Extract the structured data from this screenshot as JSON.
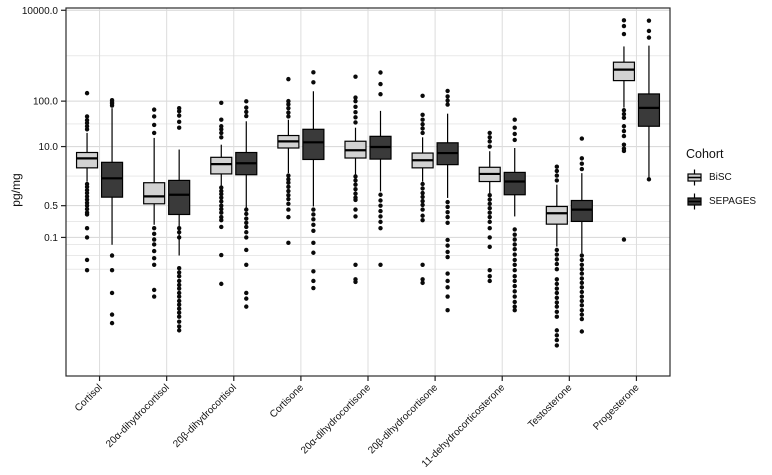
{
  "figure": {
    "background": "#ffffff"
  },
  "colors": {
    "bisc_fill": "#d2d2d2",
    "sepages_fill": "#3a3a3a",
    "box_stroke": "#000000",
    "outlier": "#0a0a0a",
    "grid_major": "#d6d6d6",
    "grid_minor": "#e9e9e9",
    "grid_vertical": "#dcdcdc",
    "panel_border": "#2b2b2b",
    "text": "#111111"
  },
  "y_axis": {
    "title": "pg/mg",
    "ticks": [
      {
        "label": "10000.0",
        "value": 10000
      },
      {
        "label": "100.0",
        "value": 100
      },
      {
        "label": "10.0",
        "value": 10
      },
      {
        "label": "0.5",
        "value": 0.5
      },
      {
        "label": "0.1",
        "value": 0.1
      }
    ],
    "minor_gridline_values": [
      1000,
      31.6,
      2.24,
      0.224,
      0.07,
      0.04,
      0.02
    ],
    "log10_range": [
      -4.05,
      4.05
    ]
  },
  "x_axis": {
    "categories": [
      "Cortisol",
      "20α-dihydrocortisol",
      "20β-dihydrocortisol",
      "Cortisone",
      "20α-dihydrocortisone",
      "20β-dihydrocortisone",
      "11-dehydrocorticosterone",
      "Testosterone",
      "Progesterone"
    ],
    "label_rotation_deg": 45
  },
  "legend": {
    "title": "Cohort",
    "items": [
      {
        "label": "BiSC",
        "fill": "#d2d2d2"
      },
      {
        "label": "SEPAGES",
        "fill": "#3a3a3a"
      }
    ]
  },
  "chart_data": {
    "type": "boxplot",
    "scale": "log10",
    "ylabel": "pg/mg",
    "grid": true,
    "legend_position": "right",
    "categories": [
      "Cortisol",
      "20α-dihydrocortisol",
      "20β-dihydrocortisol",
      "Cortisone",
      "20α-dihydrocortisone",
      "20β-dihydrocortisone",
      "11-dehydrocorticosterone",
      "Testosterone",
      "Progesterone"
    ],
    "units": "pg/mg",
    "series": [
      {
        "name": "BiSC",
        "fill": "#d2d2d2",
        "boxes": [
          {
            "wl": 1.7,
            "q1": 3.4,
            "med": 5.5,
            "q3": 7.4,
            "wh": 20,
            "out": [
              24,
              28,
              33,
              38,
              46,
              150,
              1.5,
              1.3,
              1.1,
              0.95,
              0.8,
              0.68,
              0.58,
              0.5,
              0.42,
              0.35,
              0.32,
              0.16,
              0.1,
              0.032,
              0.019
            ]
          },
          {
            "wl": 0.19,
            "q1": 0.55,
            "med": 0.8,
            "q3": 1.6,
            "wh": 15.5,
            "out": [
              20,
              30,
              46,
              65,
              0.16,
              0.12,
              0.09,
              0.07,
              0.05,
              0.035,
              0.025,
              0.007,
              0.005
            ]
          },
          {
            "wl": 1.33,
            "q1": 2.5,
            "med": 4.1,
            "q3": 5.8,
            "wh": 11,
            "out": [
              16,
              20,
              24,
              28,
              39,
              92,
              1.25,
              1.05,
              0.9,
              0.75,
              0.62,
              0.5,
              0.42,
              0.35,
              0.28,
              0.24,
              0.17,
              0.041,
              0.0095
            ]
          },
          {
            "wl": 2.6,
            "q1": 9.3,
            "med": 13,
            "q3": 17.5,
            "wh": 39,
            "out": [
              46,
              56,
              70,
              85,
              100,
              305,
              2.3,
              1.9,
              1.6,
              1.3,
              1.05,
              0.85,
              0.7,
              0.55,
              0.41,
              0.28,
              0.076
            ]
          },
          {
            "wl": 2.4,
            "q1": 5.6,
            "med": 8.3,
            "q3": 13.1,
            "wh": 26,
            "out": [
              34,
              44,
              57,
              75,
              100,
              120,
              345,
              2.2,
              1.8,
              1.45,
              1.15,
              0.92,
              0.75,
              0.67,
              0.41,
              0.29,
              0.025,
              0.012,
              0.0105
            ]
          },
          {
            "wl": 1.7,
            "q1": 3.4,
            "med": 5.0,
            "q3": 7.2,
            "wh": 16,
            "out": [
              20,
              25,
              31,
              39,
              50,
              131,
              1.5,
              1.2,
              0.95,
              0.78,
              0.63,
              0.52,
              0.41,
              0.3,
              0.24,
              0.025,
              0.012,
              0.01
            ]
          },
          {
            "wl": 0.9,
            "q1": 1.7,
            "med": 2.5,
            "q3": 3.5,
            "wh": 7.9,
            "out": [
              10,
              13,
              16,
              20,
              0.85,
              0.68,
              0.55,
              0.44,
              0.35,
              0.28,
              0.22,
              0.16,
              0.1,
              0.062,
              0.019,
              0.014,
              0.011
            ]
          },
          {
            "wl": 0.063,
            "q1": 0.196,
            "med": 0.34,
            "q3": 0.48,
            "wh": 1.45,
            "out": [
              1.8,
              2.3,
              2.9,
              3.6,
              0.053,
              0.042,
              0.033,
              0.026,
              0.02,
              0.012,
              0.0095,
              0.0075,
              0.006,
              0.0047,
              0.0037,
              0.003,
              0.0023,
              0.0018,
              0.0009,
              0.0007,
              0.00055,
              0.00042
            ]
          },
          {
            "wl": 72,
            "q1": 283,
            "med": 494,
            "q3": 720,
            "wh": 1600,
            "out": [
              3000,
              4500,
              6000,
              63,
              52,
              43,
              28,
              22,
              17,
              11,
              9,
              8,
              0.09
            ]
          }
        ]
      },
      {
        "name": "SEPAGES",
        "fill": "#3a3a3a",
        "boxes": [
          {
            "wl": 0.069,
            "q1": 0.77,
            "med": 2.0,
            "q3": 4.5,
            "wh": 70,
            "out": [
              80,
              88,
              95,
              105,
              0.04,
              0.019,
              0.006,
              0.002,
              0.0013
            ]
          },
          {
            "wl": 0.04,
            "q1": 0.32,
            "med": 0.87,
            "q3": 1.8,
            "wh": 8.6,
            "out": [
              26,
              35,
              48,
              60,
              70,
              0.16,
              0.13,
              0.1,
              0.021,
              0.017,
              0.014,
              0.011,
              0.009,
              0.0075,
              0.006,
              0.005,
              0.004,
              0.0033,
              0.0027,
              0.0022,
              0.0018,
              0.0014,
              0.0011,
              0.0009
            ]
          },
          {
            "wl": 0.44,
            "q1": 2.4,
            "med": 4.3,
            "q3": 7.4,
            "wh": 36,
            "out": [
              47,
              58,
              72,
              99,
              0.41,
              0.33,
              0.26,
              0.21,
              0.17,
              0.13,
              0.1,
              0.053,
              0.025,
              0.006,
              0.0045,
              0.003
            ]
          },
          {
            "wl": 0.48,
            "q1": 5.2,
            "med": 12.4,
            "q3": 24,
            "wh": 165,
            "out": [
              260,
              430,
              0.41,
              0.32,
              0.25,
              0.19,
              0.14,
              0.076,
              0.046,
              0.018,
              0.011,
              0.0077
            ]
          },
          {
            "wl": 1.03,
            "q1": 5.3,
            "med": 9.8,
            "q3": 16.8,
            "wh": 61,
            "out": [
              142,
              237,
              427,
              0.87,
              0.65,
              0.5,
              0.38,
              0.29,
              0.22,
              0.16,
              0.025
            ]
          },
          {
            "wl": 0.74,
            "q1": 4.0,
            "med": 7.2,
            "q3": 12.1,
            "wh": 53,
            "out": [
              84,
              103,
              127,
              168,
              0.6,
              0.47,
              0.36,
              0.28,
              0.21,
              0.088,
              0.066,
              0.048,
              0.037,
              0.016,
              0.011,
              0.008,
              0.005,
              0.0025
            ]
          },
          {
            "wl": 0.29,
            "q1": 0.87,
            "med": 1.7,
            "q3": 2.7,
            "wh": 9.3,
            "out": [
              14,
              19,
              26,
              39,
              0.15,
              0.115,
              0.09,
              0.07,
              0.055,
              0.042,
              0.032,
              0.025,
              0.019,
              0.014,
              0.011,
              0.0085,
              0.0065,
              0.005,
              0.0038,
              0.003,
              0.0025
            ]
          },
          {
            "wl": 0.045,
            "q1": 0.225,
            "med": 0.41,
            "q3": 0.65,
            "wh": 2.6,
            "out": [
              3.2,
              4.2,
              5.5,
              15,
              0.04,
              0.032,
              0.025,
              0.02,
              0.016,
              0.0125,
              0.01,
              0.008,
              0.0063,
              0.005,
              0.004,
              0.0032,
              0.0025,
              0.002,
              0.0016,
              0.00085
            ]
          },
          {
            "wl": 1.9,
            "q1": 28,
            "med": 71,
            "q3": 144,
            "wh": 1667,
            "out": [
              2500,
              3500,
              5900,
              1.9
            ]
          }
        ]
      }
    ]
  }
}
